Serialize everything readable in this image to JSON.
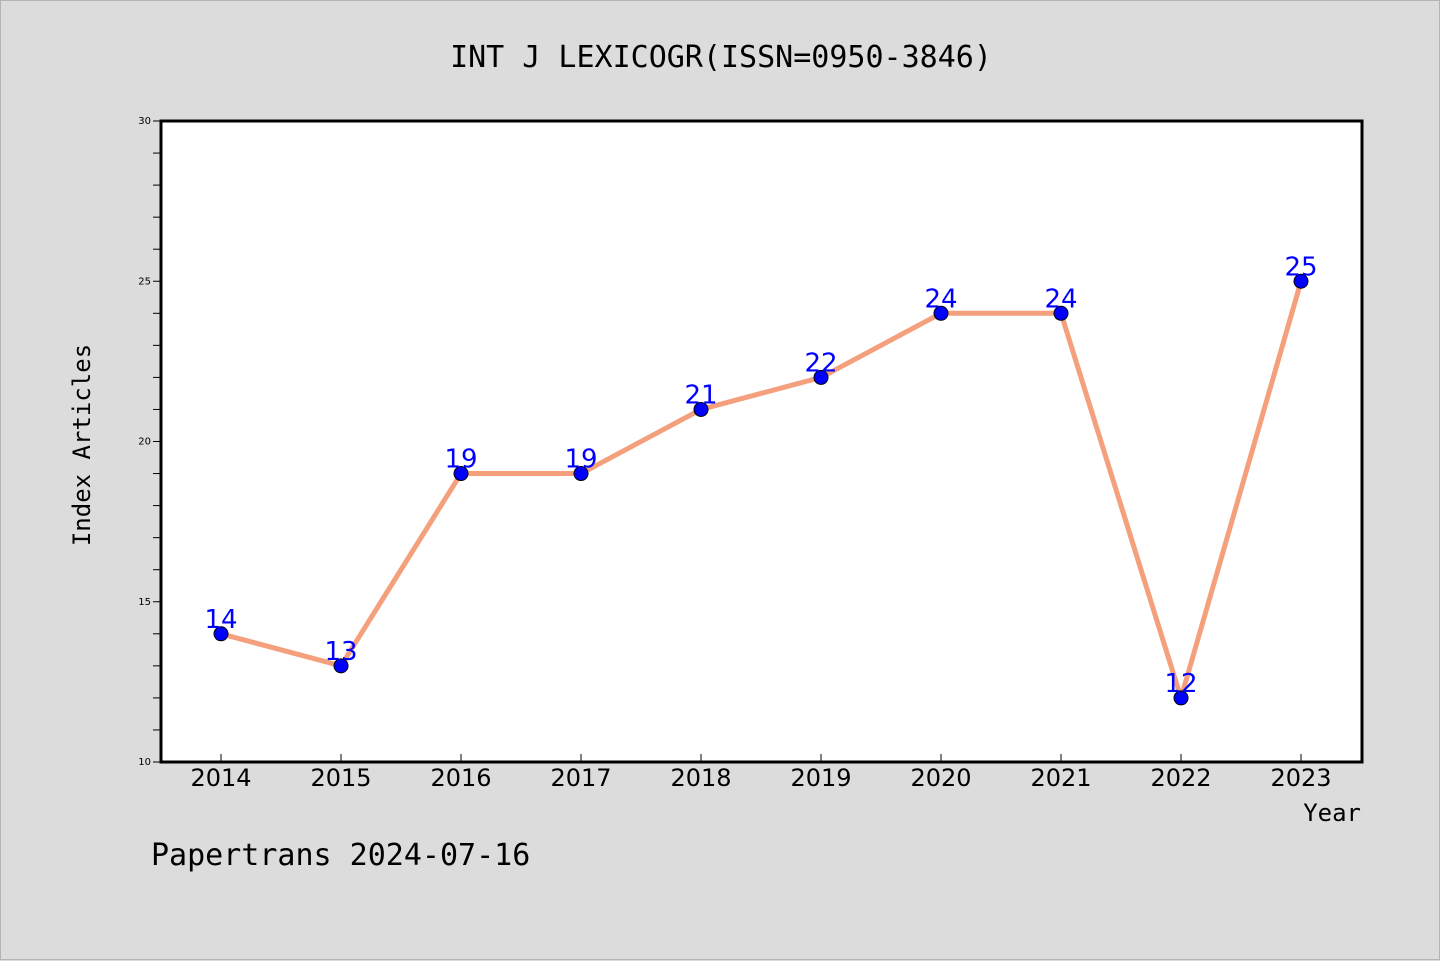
{
  "chart_data": {
    "type": "line",
    "title": "INT J LEXICOGR(ISSN=0950-3846)",
    "xlabel": "Year",
    "ylabel": "Index Articles",
    "categories": [
      "2014",
      "2015",
      "2016",
      "2017",
      "2018",
      "2019",
      "2020",
      "2021",
      "2022",
      "2023"
    ],
    "values": [
      14,
      13,
      19,
      19,
      21,
      22,
      24,
      24,
      12,
      25
    ],
    "ylim": [
      10,
      30
    ],
    "yticks": [
      10,
      15,
      20,
      25,
      30
    ],
    "line_color": "#f4a07c",
    "marker_color": "#0000ff",
    "label_color": "#0000ff",
    "grid": false
  },
  "footer": {
    "text": "Papertrans 2024-07-16"
  }
}
